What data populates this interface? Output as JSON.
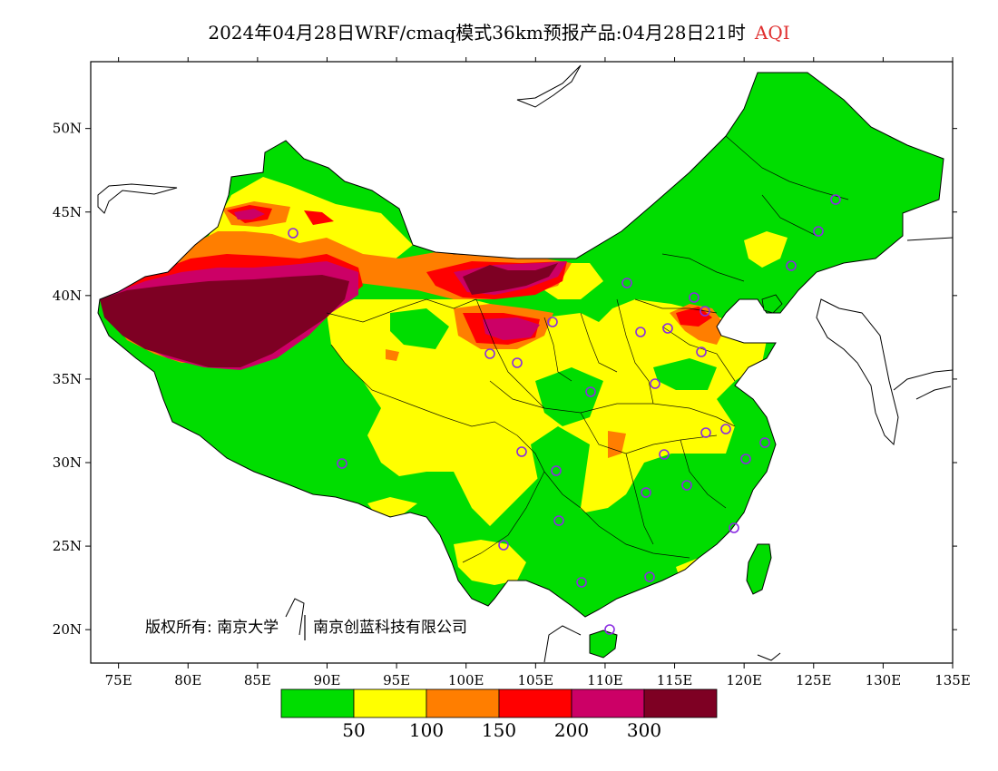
{
  "title": {
    "text": "2024年04月28日WRF/cmaq模式36km预报产品:04月28日21时",
    "variable": "AQI"
  },
  "map": {
    "lon_ticks": [
      "75E",
      "80E",
      "85E",
      "90E",
      "95E",
      "100E",
      "105E",
      "110E",
      "115E",
      "120E",
      "125E",
      "130E",
      "135E"
    ],
    "lat_ticks": [
      "50N",
      "45N",
      "40N",
      "35N",
      "30N",
      "25N",
      "20N"
    ],
    "lon_range": [
      73,
      135
    ],
    "lat_range": [
      18,
      54
    ],
    "copyright": "版权所有: 南京大学",
    "copyright_company": "南京创蓝科技有限公司"
  },
  "colorbar": {
    "colors": [
      "#00dd00",
      "#ffff00",
      "#ff7e00",
      "#ff0000",
      "#cc0066",
      "#7e0023"
    ],
    "labels": [
      "50",
      "100",
      "150",
      "200",
      "300"
    ]
  },
  "stations": {
    "marker_color": "#8a2be2"
  }
}
